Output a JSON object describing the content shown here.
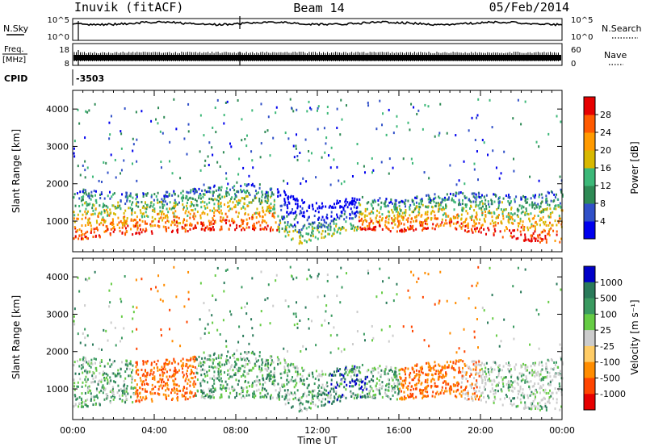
{
  "header": {
    "station": "Inuvik (fitACF)",
    "beam": "Beam 14",
    "date": "05/Feb/2014"
  },
  "nsky_panel": {
    "left_label": "N.Sky",
    "right_label": "N.Search",
    "left_ticks": [
      "10^5",
      "10^0"
    ],
    "right_ticks": [
      "10^5",
      "10^0"
    ]
  },
  "freq_panel": {
    "left_label_line1": "Freq.",
    "left_label_line2": "[MHz]",
    "right_label": "Nave",
    "left_ticks": [
      "18",
      "8"
    ],
    "right_ticks": [
      "60",
      "0"
    ]
  },
  "cpid": {
    "label": "CPID",
    "value": "-3503"
  },
  "chart_data": [
    {
      "type": "heatmap",
      "title": "",
      "quantity": "Power",
      "colorbar_label": "Power [dB]",
      "colorbar_ticks": [
        "4",
        "8",
        "12",
        "16",
        "20",
        "24",
        "28"
      ],
      "colorbar_colors": [
        "#0000ee",
        "#3050c8",
        "#2e8a55",
        "#3cb878",
        "#d8b800",
        "#ff9a00",
        "#ff5a00",
        "#e60000"
      ],
      "ylabel": "Slant Range [km]",
      "yticks": [
        1000,
        2000,
        3000,
        4000
      ],
      "ylim": [
        180,
        4500
      ],
      "xlim_hours": [
        0,
        24
      ],
      "echo_band": {
        "hours": [
          0,
          2,
          4,
          6,
          8,
          10,
          11,
          12,
          14,
          16,
          18,
          20,
          22,
          24
        ],
        "lower_km": [
          500,
          650,
          700,
          750,
          800,
          750,
          400,
          550,
          800,
          750,
          800,
          700,
          500,
          400
        ],
        "upper_km": [
          1900,
          1800,
          1800,
          1900,
          2100,
          1900,
          1700,
          1500,
          1700,
          1600,
          1800,
          1800,
          1700,
          1900
        ]
      }
    },
    {
      "type": "heatmap",
      "title": "",
      "quantity": "Velocity",
      "colorbar_label": "Velocity [m s⁻¹]",
      "colorbar_ticks": [
        "1000",
        "500",
        "100",
        "25",
        "-25",
        "-100",
        "-500",
        "-1000"
      ],
      "colorbar_colors": [
        "#0000c8",
        "#2a7a5a",
        "#3a9a60",
        "#66cc44",
        "#cccccc",
        "#ffcc66",
        "#ff8c00",
        "#ff4500",
        "#e60000"
      ],
      "ylabel": "Slant Range [km]",
      "yticks": [
        1000,
        2000,
        3000,
        4000
      ],
      "ylim": [
        180,
        4500
      ],
      "xlabel": "Time UT",
      "xticks": [
        "00:00",
        "04:00",
        "08:00",
        "12:00",
        "16:00",
        "20:00",
        "00:00"
      ],
      "xlim_hours": [
        0,
        24
      ]
    }
  ]
}
